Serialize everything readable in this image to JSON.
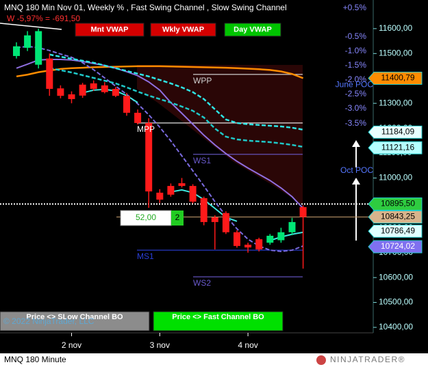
{
  "chart_data": {
    "type": "candlestick",
    "title": "MNQ 180 Min Nov 01, Weekly % , Fast Swing Channel , Slow Swing Channel",
    "subtitle": "W -5,97% = -691,50",
    "instrument_label": "MNQ 180 Minute",
    "copyright": "© 2022 NinjaTrader, LLC",
    "logo": "NINJATRADER®",
    "buttons": [
      {
        "label": "Mnt VWAP",
        "color": "#d40000"
      },
      {
        "label": "Wkly VWAP",
        "color": "#d40000"
      },
      {
        "label": "Day VWAP",
        "color": "#00c400"
      },
      {
        "label": "Price <> SLow Channel BO",
        "color": "#8c8c8c"
      },
      {
        "label": "Price <> Fast Channel BO",
        "color": "#00e000"
      }
    ],
    "counter": "52,00",
    "count": 2,
    "categories": [
      null,
      null,
      null,
      null,
      null,
      "2 nov",
      null,
      null,
      null,
      null,
      null,
      null,
      null,
      "3 nov",
      null,
      null,
      null,
      null,
      null,
      null,
      null,
      "4 nov",
      null,
      null,
      null,
      null,
      null
    ],
    "open": [
      11490,
      11523,
      11455,
      11480,
      11360,
      11336,
      11375,
      11380,
      11372,
      11358,
      11330,
      11262,
      11221,
      10941,
      10968,
      10979,
      10968,
      10919,
      10842,
      10859,
      10782,
      10732,
      10754,
      10740,
      10750,
      10782,
      10883
    ],
    "high": [
      11545,
      11590,
      11600,
      11500,
      11372,
      11348,
      11382,
      11392,
      11385,
      11366,
      11342,
      11275,
      11240,
      10955,
      10978,
      11000,
      10975,
      10925,
      10850,
      10866,
      10790,
      10740,
      10760,
      10775,
      10800,
      10840,
      10890
    ],
    "low": [
      11480,
      11510,
      11440,
      11330,
      11320,
      11300,
      11322,
      11350,
      11340,
      11325,
      11250,
      11215,
      10880,
      10900,
      10925,
      10962,
      10898,
      10810,
      10713,
      10775,
      10720,
      10700,
      10705,
      10732,
      10740,
      10770,
      10636
    ],
    "close": [
      11529,
      11573,
      11590,
      11358,
      11330,
      11317,
      11331,
      11358,
      11345,
      11330,
      11262,
      11221,
      10946,
      10913,
      10933,
      10968,
      10905,
      10823,
      10823,
      10782,
      10727,
      10721,
      10713,
      10768,
      10782,
      10823,
      10843
    ],
    "up_color": "#00e676",
    "down_color": "#ff1a1a",
    "series": [
      {
        "color": "#ff8c00",
        "style": "solid",
        "width": 2.5,
        "values": [
          11408,
          11415,
          11425,
          11432,
          11438,
          11441,
          11443,
          11445,
          11446,
          11447,
          11448,
          11449,
          11449,
          11449,
          11448,
          11447,
          11446,
          11445,
          11444,
          11443,
          11441,
          11439,
          11437,
          11434,
          11428,
          11418,
          11401
        ]
      },
      {
        "color": "#8f6fe0",
        "style": "solid",
        "width": 2,
        "values": [
          11441,
          11457,
          11474,
          11476,
          11476,
          11474,
          11468,
          11460,
          11452,
          11441,
          11427,
          11411,
          11386,
          11353,
          11303,
          11260,
          11216,
          11172,
          11133,
          11098,
          11067,
          11040,
          11015,
          10990,
          10960,
          10925,
          10878
        ]
      },
      {
        "color": "#7b6be0",
        "style": "dashed",
        "width": 2,
        "values": [
          11523,
          11529,
          11523,
          11512,
          11498,
          11485,
          11463,
          11435,
          11402,
          11369,
          11336,
          11298,
          11254,
          11204,
          11149,
          11089,
          11029,
          10968,
          10905,
          10848,
          10796,
          10754,
          10727,
          10710,
          10705,
          10710,
          10727
        ]
      },
      {
        "color": "#2ee6e6",
        "style": "dashed",
        "width": 2.5,
        "values": [
          null,
          null,
          null,
          11496,
          11487,
          11479,
          11471,
          11463,
          11452,
          11441,
          11430,
          11419,
          11408,
          11394,
          11380,
          11364,
          11345,
          11317,
          11276,
          11235,
          11221,
          11216,
          11213,
          11210,
          11207,
          11202,
          11194
        ]
      },
      {
        "color": "#1fc8c8",
        "style": "dashed",
        "width": 2.5,
        "values": [
          null,
          null,
          null,
          11441,
          11433,
          11424,
          11413,
          11402,
          11391,
          11380,
          11364,
          11347,
          11331,
          11317,
          11303,
          11287,
          11270,
          11243,
          11199,
          11166,
          11155,
          11150,
          11147,
          11144,
          11139,
          11133,
          11125
        ]
      },
      {
        "color": "#3ee8e0",
        "style": "solid",
        "width": 2,
        "values": [
          null,
          null,
          null,
          null,
          null,
          null,
          11342,
          11353,
          11356,
          11350,
          11331,
          11303,
          null,
          null,
          10944,
          10952,
          10941,
          10913,
          10878,
          10842,
          10826,
          null,
          null,
          10749,
          10763,
          10774,
          10782
        ]
      }
    ],
    "levels": [
      {
        "label": "WPP",
        "value": 11416,
        "color": "#cfcfcf"
      },
      {
        "label": "MPP",
        "value": 11221,
        "color": "#ffffff"
      },
      {
        "label": "WS1",
        "value": 11095,
        "color": "#6a5acd"
      },
      {
        "label": "MS1",
        "value": 10710,
        "color": "#2a3fd8"
      },
      {
        "label": "WS2",
        "value": 10603,
        "color": "#6a5acd"
      }
    ],
    "price_markers": [
      {
        "value": 11400.79,
        "label": "11400,79",
        "color": "#ff8c00"
      },
      {
        "value": 11184.09,
        "label": "11184,09",
        "color": "#e8ffff"
      },
      {
        "value": 11121.16,
        "label": "11121,16",
        "color": "#b5ffff"
      },
      {
        "value": 10895.5,
        "label": "10895,50",
        "color": "#2ecc40"
      },
      {
        "value": 10843.25,
        "label": "10843,25",
        "color": "#d8b48c"
      },
      {
        "value": 10786.49,
        "label": "10786,49",
        "color": "#e0ffff"
      },
      {
        "value": 10724.02,
        "label": "10724,02",
        "color": "#8070f0"
      }
    ],
    "pct_levels": [
      {
        "value": 11682,
        "label": "+0.5%"
      },
      {
        "value": 11567,
        "label": "-0.5%"
      },
      {
        "value": 11509,
        "label": "-1.0%"
      },
      {
        "value": 11452,
        "label": "-1.5%"
      },
      {
        "value": 11394,
        "label": "-2.0%"
      },
      {
        "value": 11336,
        "label": "-2.5%"
      },
      {
        "value": 11279,
        "label": "-3.0%"
      },
      {
        "value": 11218,
        "label": "-3.5%"
      }
    ],
    "poc": [
      {
        "label": "June POC",
        "value": 11373
      },
      {
        "label": "Oct POC",
        "value": 11029
      }
    ],
    "ylim": [
      10378,
      11715
    ],
    "yticks": [
      {
        "value": 10400,
        "label": "10400,00"
      },
      {
        "value": 10500,
        "label": "10500,00"
      },
      {
        "value": 10600,
        "label": "10600,00"
      },
      {
        "value": 10700,
        "label": "10700,00"
      },
      {
        "value": 10800,
        "label": "10800,00"
      },
      {
        "value": 10900,
        "label": "10900,00"
      },
      {
        "value": 11000,
        "label": "11000,00"
      },
      {
        "value": 11100,
        "label": "11100,00"
      },
      {
        "value": 11200,
        "label": "11200,00"
      },
      {
        "value": 11300,
        "label": "11300,00"
      },
      {
        "value": 11400,
        "label": "11400,00"
      },
      {
        "value": 11500,
        "label": "11500,00"
      },
      {
        "value": 11600,
        "label": "11600,00"
      }
    ]
  }
}
